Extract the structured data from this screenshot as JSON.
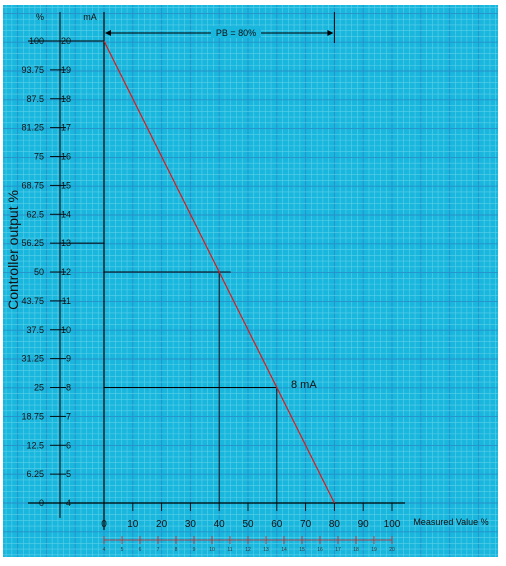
{
  "chart_data": {
    "type": "line",
    "title": "",
    "xlabel": "Measured Value %",
    "ylabel": "Controller output %",
    "y_unit_left": "%",
    "y_unit_right": "mA",
    "xlim": [
      0,
      100
    ],
    "ylim": [
      0,
      100
    ],
    "x_ticks": [
      "0",
      "10",
      "20",
      "30",
      "40",
      "50",
      "60",
      "70",
      "80",
      "90",
      "100"
    ],
    "x_mA_ticks": [
      "4",
      "5",
      "6",
      "7",
      "8",
      "9",
      "10",
      "11",
      "12",
      "13",
      "14",
      "15",
      "16",
      "17",
      "18",
      "19",
      "20"
    ],
    "y_percent_ticks": [
      "0",
      "6.25",
      "12.5",
      "18.75",
      "25",
      "31.25",
      "37.5",
      "43.75",
      "50",
      "56.25",
      "62.5",
      "68.75",
      "75",
      "81.25",
      "87.5",
      "93.75",
      "100"
    ],
    "y_mA_ticks": [
      "4",
      "5",
      "6",
      "7",
      "8",
      "9",
      "10",
      "11",
      "12",
      "13",
      "14",
      "15",
      "16",
      "17",
      "18",
      "19",
      "20"
    ],
    "series": [
      {
        "color": "#e01818",
        "x": [
          0,
          80
        ],
        "y": [
          100,
          0
        ]
      }
    ],
    "guides": [
      {
        "x": 40,
        "y": 50
      },
      {
        "x": 60,
        "y": 25
      }
    ],
    "annotations": {
      "pb_label": "PB = 80%",
      "pb_range": [
        0,
        80
      ],
      "output_label": "8 mA"
    },
    "grid": true,
    "colors": {
      "grid_fine": "#5ad0e6",
      "grid_major": "#2790c8",
      "background": "#19b6de",
      "line": "#e01818"
    }
  }
}
